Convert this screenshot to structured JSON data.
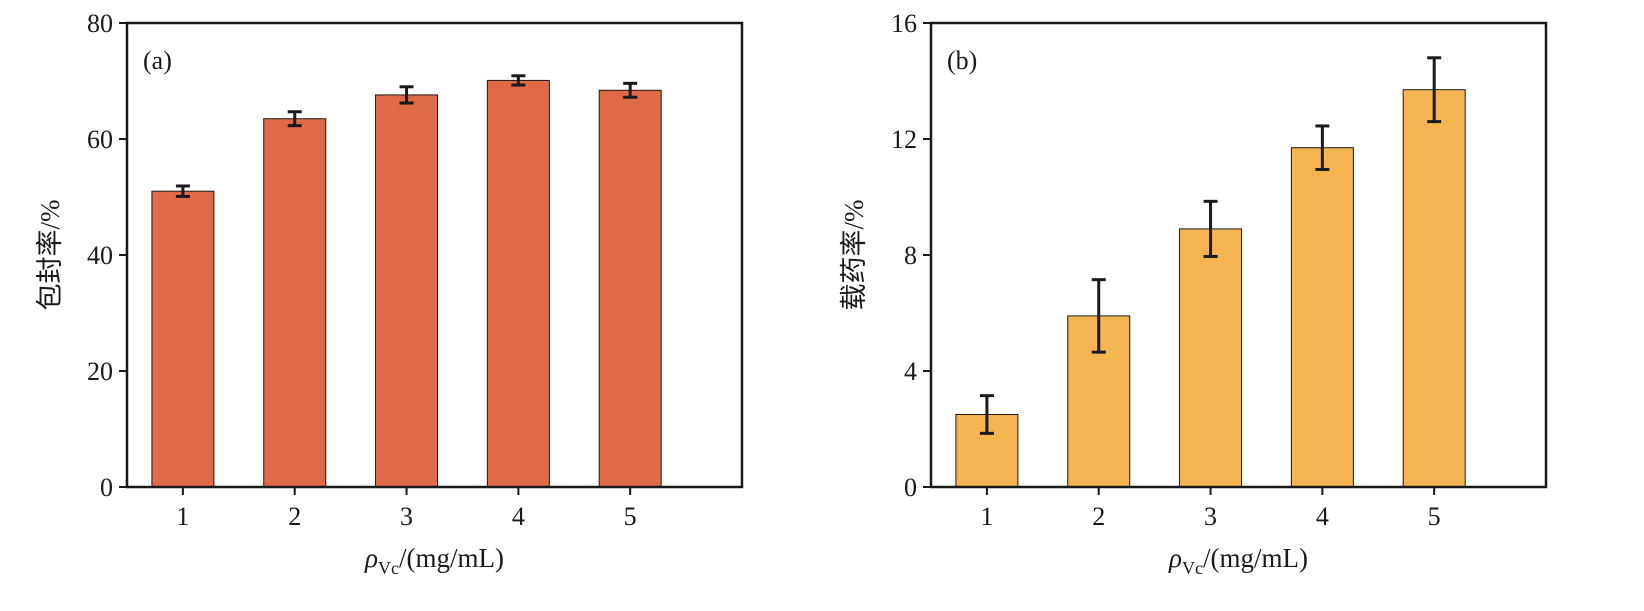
{
  "chart_data": [
    {
      "type": "bar",
      "panel_label": "(a)",
      "categories": [
        "1",
        "2",
        "3",
        "4",
        "5"
      ],
      "values": [
        51.0,
        63.5,
        67.6,
        70.1,
        68.4
      ],
      "errors": [
        0.9,
        1.2,
        1.4,
        0.8,
        1.2
      ],
      "ylabel": "包封率/%",
      "xlabel": {
        "symbol": "ρ",
        "subscript": "Vc",
        "unit": "/(mg/mL)"
      },
      "ylim": [
        0,
        80
      ],
      "yticks": [
        "0",
        "20",
        "40",
        "60",
        "80"
      ],
      "bar_color": "#df6a47",
      "grid": false,
      "legend": "none"
    },
    {
      "type": "bar",
      "panel_label": "(b)",
      "categories": [
        "1",
        "2",
        "3",
        "4",
        "5"
      ],
      "values": [
        2.5,
        5.9,
        8.9,
        11.7,
        13.7
      ],
      "errors": [
        0.65,
        1.25,
        0.95,
        0.75,
        1.1
      ],
      "ylabel": "载药率/%",
      "xlabel": {
        "symbol": "ρ",
        "subscript": "Vc",
        "unit": "/(mg/mL)"
      },
      "ylim": [
        0,
        16
      ],
      "yticks": [
        "0",
        "4",
        "8",
        "12",
        "16"
      ],
      "bar_color": "#f5b452",
      "grid": false,
      "legend": "none"
    }
  ]
}
